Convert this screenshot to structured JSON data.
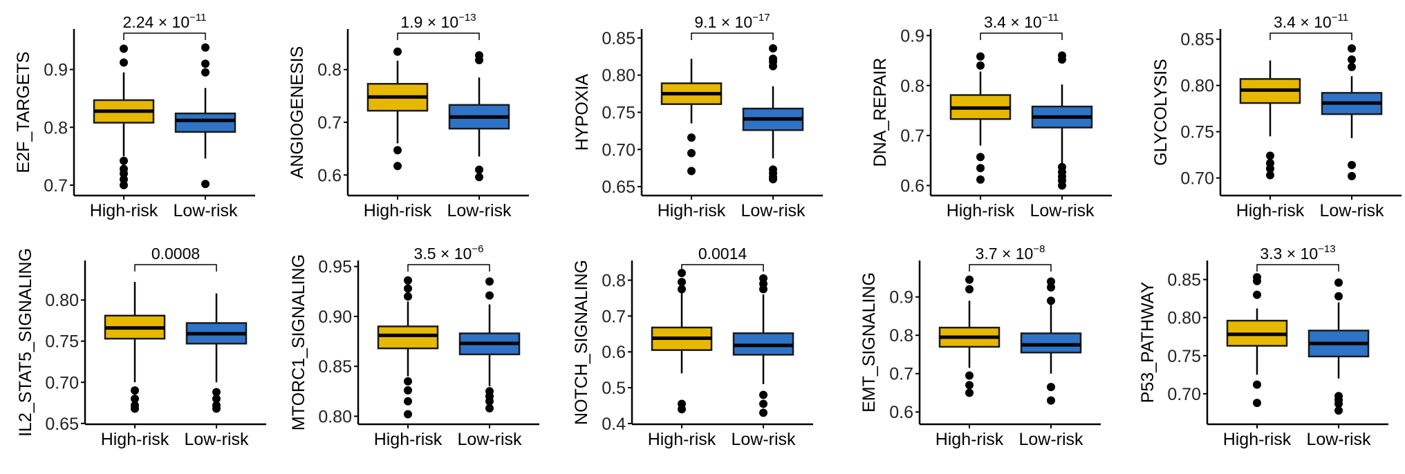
{
  "colors": {
    "high": "#E7B800",
    "low": "#2E73C6",
    "line": "#000000"
  },
  "chart_data": [
    {
      "type": "box",
      "ylabel": "E2F_TARGETS",
      "categories": [
        "High-risk",
        "Low-risk"
      ],
      "pvalue": {
        "base": "2.24 × 10",
        "exp": "−11"
      },
      "ylim": [
        0.682,
        0.97
      ],
      "yticks": [
        0.7,
        0.8,
        0.9
      ],
      "tick_labels": [
        "0.7",
        "0.8",
        "0.9"
      ],
      "series": [
        {
          "name": "High-risk",
          "q1": 0.808,
          "median": 0.828,
          "q3": 0.847,
          "whisker_low": 0.75,
          "whisker_high": 0.895,
          "outliers": [
            0.936,
            0.912,
            0.742,
            0.728,
            0.72,
            0.71,
            0.7
          ]
        },
        {
          "name": "Low-risk",
          "q1": 0.792,
          "median": 0.812,
          "q3": 0.824,
          "whisker_low": 0.746,
          "whisker_high": 0.868,
          "outliers": [
            0.938,
            0.91,
            0.895,
            0.702
          ]
        }
      ]
    },
    {
      "type": "box",
      "ylabel": "ANGIOGENESIS",
      "categories": [
        "High-risk",
        "Low-risk"
      ],
      "pvalue": {
        "base": "1.9 × 10",
        "exp": "−13"
      },
      "ylim": [
        0.561,
        0.877
      ],
      "yticks": [
        0.6,
        0.7,
        0.8
      ],
      "tick_labels": [
        "0.6",
        "0.7",
        "0.8"
      ],
      "series": [
        {
          "name": "High-risk",
          "q1": 0.722,
          "median": 0.748,
          "q3": 0.773,
          "whisker_low": 0.66,
          "whisker_high": 0.817,
          "outliers": [
            0.834,
            0.647,
            0.617
          ]
        },
        {
          "name": "Low-risk",
          "q1": 0.688,
          "median": 0.71,
          "q3": 0.733,
          "whisker_low": 0.635,
          "whisker_high": 0.785,
          "outliers": [
            0.827,
            0.818,
            0.61,
            0.596
          ]
        }
      ]
    },
    {
      "type": "box",
      "ylabel": "HYPOXIA",
      "categories": [
        "High-risk",
        "Low-risk"
      ],
      "pvalue": {
        "base": "9.1 × 10",
        "exp": "−17"
      },
      "ylim": [
        0.638,
        0.862
      ],
      "yticks": [
        0.65,
        0.7,
        0.75,
        0.8,
        0.85
      ],
      "tick_labels": [
        "0.65",
        "0.70",
        "0.75",
        "0.80",
        "0.85"
      ],
      "series": [
        {
          "name": "High-risk",
          "q1": 0.761,
          "median": 0.775,
          "q3": 0.789,
          "whisker_low": 0.735,
          "whisker_high": 0.822,
          "outliers": [
            0.716,
            0.695,
            0.671
          ]
        },
        {
          "name": "Low-risk",
          "q1": 0.726,
          "median": 0.741,
          "q3": 0.755,
          "whisker_low": 0.688,
          "whisker_high": 0.785,
          "outliers": [
            0.836,
            0.822,
            0.818,
            0.812,
            0.673,
            0.668,
            0.663,
            0.66
          ]
        }
      ]
    },
    {
      "type": "box",
      "ylabel": "DNA_REPAIR",
      "categories": [
        "High-risk",
        "Low-risk"
      ],
      "pvalue": {
        "base": "3.4 × 10",
        "exp": "−11"
      },
      "ylim": [
        0.58,
        0.913
      ],
      "yticks": [
        0.6,
        0.7,
        0.8,
        0.9
      ],
      "tick_labels": [
        "0.6",
        "0.7",
        "0.8",
        "0.9"
      ],
      "series": [
        {
          "name": "High-risk",
          "q1": 0.733,
          "median": 0.755,
          "q3": 0.781,
          "whisker_low": 0.68,
          "whisker_high": 0.828,
          "outliers": [
            0.858,
            0.84,
            0.657,
            0.635,
            0.612
          ]
        },
        {
          "name": "Low-risk",
          "q1": 0.716,
          "median": 0.737,
          "q3": 0.758,
          "whisker_low": 0.64,
          "whisker_high": 0.802,
          "outliers": [
            0.86,
            0.852,
            0.637,
            0.627,
            0.618,
            0.61,
            0.6
          ]
        }
      ]
    },
    {
      "type": "box",
      "ylabel": "GLYCOLYSIS",
      "categories": [
        "High-risk",
        "Low-risk"
      ],
      "pvalue": {
        "base": "3.4 × 10",
        "exp": "−11"
      },
      "ylim": [
        0.681,
        0.861
      ],
      "yticks": [
        0.7,
        0.75,
        0.8,
        0.85
      ],
      "tick_labels": [
        "0.70",
        "0.75",
        "0.80",
        "0.85"
      ],
      "series": [
        {
          "name": "High-risk",
          "q1": 0.781,
          "median": 0.795,
          "q3": 0.807,
          "whisker_low": 0.745,
          "whisker_high": 0.827,
          "outliers": [
            0.724,
            0.716,
            0.71,
            0.703
          ]
        },
        {
          "name": "Low-risk",
          "q1": 0.769,
          "median": 0.781,
          "q3": 0.792,
          "whisker_low": 0.743,
          "whisker_high": 0.81,
          "outliers": [
            0.84,
            0.828,
            0.82,
            0.714,
            0.702
          ]
        }
      ]
    },
    {
      "type": "box",
      "ylabel": "IL2_STAT5_SIGNALING",
      "categories": [
        "High-risk",
        "Low-risk"
      ],
      "pvalue": {
        "base": "0.0008",
        "exp": ""
      },
      "ylim": [
        0.649,
        0.848
      ],
      "yticks": [
        0.65,
        0.7,
        0.75,
        0.8
      ],
      "tick_labels": [
        "0.65",
        "0.70",
        "0.75",
        "0.80"
      ],
      "series": [
        {
          "name": "High-risk",
          "q1": 0.753,
          "median": 0.766,
          "q3": 0.781,
          "whisker_low": 0.7,
          "whisker_high": 0.822,
          "outliers": [
            0.69,
            0.68,
            0.672,
            0.668
          ]
        },
        {
          "name": "Low-risk",
          "q1": 0.747,
          "median": 0.759,
          "q3": 0.772,
          "whisker_low": 0.7,
          "whisker_high": 0.808,
          "outliers": [
            0.688,
            0.68,
            0.672,
            0.668
          ]
        }
      ]
    },
    {
      "type": "box",
      "ylabel": "MTORC1_SIGNALING",
      "categories": [
        "High-risk",
        "Low-risk"
      ],
      "pvalue": {
        "base": "3.5 × 10",
        "exp": "−6"
      },
      "ylim": [
        0.792,
        0.956
      ],
      "yticks": [
        0.8,
        0.85,
        0.9,
        0.95
      ],
      "tick_labels": [
        "0.80",
        "0.85",
        "0.90",
        "0.95"
      ],
      "series": [
        {
          "name": "High-risk",
          "q1": 0.868,
          "median": 0.881,
          "q3": 0.89,
          "whisker_low": 0.84,
          "whisker_high": 0.915,
          "outliers": [
            0.936,
            0.928,
            0.92,
            0.835,
            0.826,
            0.815,
            0.802
          ]
        },
        {
          "name": "Low-risk",
          "q1": 0.862,
          "median": 0.873,
          "q3": 0.883,
          "whisker_low": 0.83,
          "whisker_high": 0.912,
          "outliers": [
            0.935,
            0.921,
            0.825,
            0.82,
            0.815,
            0.808
          ]
        }
      ]
    },
    {
      "type": "box",
      "ylabel": "NOTCH_SIGNALING",
      "categories": [
        "High-risk",
        "Low-risk"
      ],
      "pvalue": {
        "base": "0.0014",
        "exp": ""
      },
      "ylim": [
        0.398,
        0.855
      ],
      "yticks": [
        0.4,
        0.5,
        0.6,
        0.7,
        0.8
      ],
      "tick_labels": [
        "0.4",
        "0.5",
        "0.6",
        "0.7",
        "0.8"
      ],
      "series": [
        {
          "name": "High-risk",
          "q1": 0.605,
          "median": 0.638,
          "q3": 0.668,
          "whisker_low": 0.54,
          "whisker_high": 0.77,
          "outliers": [
            0.82,
            0.795,
            0.775,
            0.455,
            0.44
          ]
        },
        {
          "name": "Low-risk",
          "q1": 0.592,
          "median": 0.618,
          "q3": 0.652,
          "whisker_low": 0.51,
          "whisker_high": 0.76,
          "outliers": [
            0.805,
            0.79,
            0.775,
            0.48,
            0.455,
            0.43
          ]
        }
      ]
    },
    {
      "type": "box",
      "ylabel": "EMT_SIGNALING",
      "categories": [
        "High-risk",
        "Low-risk"
      ],
      "pvalue": {
        "base": "3.7 × 10",
        "exp": "−8"
      },
      "ylim": [
        0.568,
        0.995
      ],
      "yticks": [
        0.6,
        0.7,
        0.8,
        0.9
      ],
      "tick_labels": [
        "0.6",
        "0.7",
        "0.8",
        "0.9"
      ],
      "series": [
        {
          "name": "High-risk",
          "q1": 0.77,
          "median": 0.795,
          "q3": 0.82,
          "whisker_low": 0.715,
          "whisker_high": 0.89,
          "outliers": [
            0.945,
            0.92,
            0.695,
            0.67,
            0.65
          ]
        },
        {
          "name": "Low-risk",
          "q1": 0.755,
          "median": 0.775,
          "q3": 0.805,
          "whisker_low": 0.7,
          "whisker_high": 0.88,
          "outliers": [
            0.94,
            0.925,
            0.89,
            0.665,
            0.63
          ]
        }
      ]
    },
    {
      "type": "box",
      "ylabel": "P53_PATHWAY",
      "categories": [
        "High-risk",
        "Low-risk"
      ],
      "pvalue": {
        "base": "3.3 × 10",
        "exp": "−13"
      },
      "ylim": [
        0.66,
        0.875
      ],
      "yticks": [
        0.7,
        0.75,
        0.8,
        0.85
      ],
      "tick_labels": [
        "0.70",
        "0.75",
        "0.80",
        "0.85"
      ],
      "series": [
        {
          "name": "High-risk",
          "q1": 0.763,
          "median": 0.778,
          "q3": 0.796,
          "whisker_low": 0.725,
          "whisker_high": 0.812,
          "outliers": [
            0.853,
            0.848,
            0.83,
            0.712,
            0.688
          ]
        },
        {
          "name": "Low-risk",
          "q1": 0.749,
          "median": 0.766,
          "q3": 0.783,
          "whisker_low": 0.72,
          "whisker_high": 0.82,
          "outliers": [
            0.846,
            0.828,
            0.697,
            0.692,
            0.687,
            0.678
          ]
        }
      ]
    }
  ]
}
